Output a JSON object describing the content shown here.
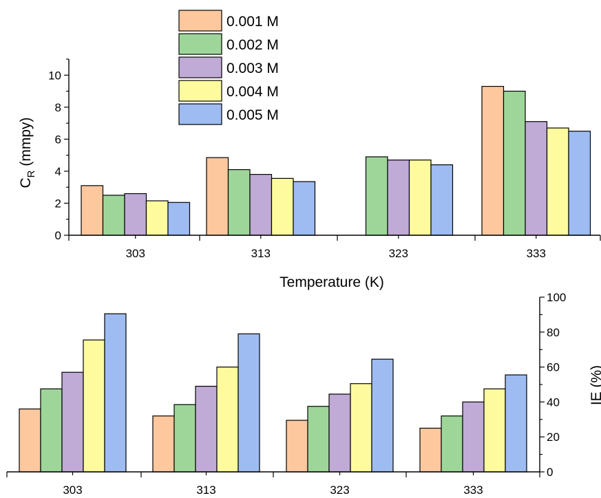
{
  "chart_data": [
    {
      "type": "bar",
      "categories": [
        "303",
        "313",
        "323",
        "333"
      ],
      "series": [
        {
          "name": "0.001 M",
          "color": "#FDC89E",
          "values": [
            3.1,
            4.85,
            null,
            9.3
          ]
        },
        {
          "name": "0.002 M",
          "color": "#9ED69A",
          "values": [
            2.5,
            4.1,
            4.9,
            9.0
          ]
        },
        {
          "name": "0.003 M",
          "color": "#C0AAD6",
          "values": [
            2.6,
            3.8,
            4.7,
            7.1
          ]
        },
        {
          "name": "0.004 M",
          "color": "#FDFB9E",
          "values": [
            2.15,
            3.55,
            4.7,
            6.7
          ]
        },
        {
          "name": "0.005 M",
          "color": "#9EBCF2",
          "values": [
            2.05,
            3.35,
            4.4,
            6.5
          ]
        }
      ],
      "ylabel_main": "C",
      "ylabel_sub": "R",
      "ylabel_tail": " (mmpy)",
      "xlabel": "Temperature (K)",
      "ylim": [
        0,
        11
      ],
      "yticks": [
        "0",
        "2",
        "4",
        "6",
        "8",
        "10"
      ],
      "legend_position": "top-center"
    },
    {
      "type": "bar",
      "categories": [
        "303",
        "313",
        "323",
        "333"
      ],
      "series": [
        {
          "name": "0.001 M",
          "color": "#FDC89E",
          "values": [
            36,
            32,
            29.5,
            25
          ]
        },
        {
          "name": "0.002 M",
          "color": "#9ED69A",
          "values": [
            47.5,
            38.5,
            37.5,
            32
          ]
        },
        {
          "name": "0.003 M",
          "color": "#C0AAD6",
          "values": [
            57,
            49,
            44.5,
            40
          ]
        },
        {
          "name": "0.004 M",
          "color": "#FDFB9E",
          "values": [
            75.5,
            60,
            50.5,
            47.5
          ]
        },
        {
          "name": "0.005 M",
          "color": "#9EBCF2",
          "values": [
            90.5,
            79,
            64.5,
            55.5
          ]
        }
      ],
      "ylabel": "IE (%)",
      "ylim": [
        0,
        100
      ],
      "yticks": [
        "0",
        "20",
        "40",
        "60",
        "80",
        "100"
      ],
      "y_axis_side": "right"
    }
  ]
}
